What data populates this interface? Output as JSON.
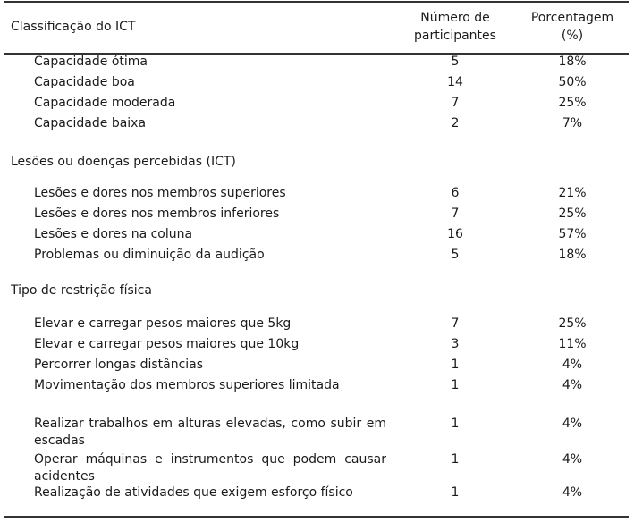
{
  "header": {
    "col1": "Classificação do ICT",
    "col2_line1": "Número de",
    "col2_line2": "participantes",
    "col3_line1": "Porcentagem",
    "col3_line2": "(%)"
  },
  "sections": [
    {
      "title": "",
      "rows": [
        {
          "label": "Capacidade ótima",
          "n": "5",
          "pct": "18%"
        },
        {
          "label": "Capacidade boa",
          "n": "14",
          "pct": "50%"
        },
        {
          "label": "Capacidade moderada",
          "n": "7",
          "pct": "25%"
        },
        {
          "label": "Capacidade baixa",
          "n": "2",
          "pct": "7%"
        }
      ]
    },
    {
      "title": "Lesões ou doenças percebidas (ICT)",
      "rows": [
        {
          "label": "Lesões e dores nos membros superiores",
          "n": "6",
          "pct": "21%"
        },
        {
          "label": "Lesões e dores nos membros inferiores",
          "n": "7",
          "pct": "25%"
        },
        {
          "label": "Lesões e dores na coluna",
          "n": "16",
          "pct": "57%"
        },
        {
          "label": "Problemas ou diminuição da audição",
          "n": "5",
          "pct": "18%"
        }
      ]
    },
    {
      "title": "Tipo de restrição física",
      "rows": [
        {
          "label": "Elevar e carregar pesos maiores que 5kg",
          "n": "7",
          "pct": "25%"
        },
        {
          "label": "Elevar e carregar pesos maiores que 10kg",
          "n": "3",
          "pct": "11%"
        },
        {
          "label": "Percorrer longas distâncias",
          "n": "1",
          "pct": "4%"
        },
        {
          "label": "Movimentação dos membros superiores limitada",
          "n": "1",
          "pct": "4%"
        },
        {
          "label": "Realizar trabalhos em alturas elevadas, como subir em escadas",
          "n": "1",
          "pct": "4%"
        },
        {
          "label": "Operar máquinas e instrumentos que podem causar acidentes",
          "n": "1",
          "pct": "4%"
        },
        {
          "label": "Realização de atividades que exigem esforço físico",
          "n": "1",
          "pct": "4%"
        }
      ]
    }
  ]
}
